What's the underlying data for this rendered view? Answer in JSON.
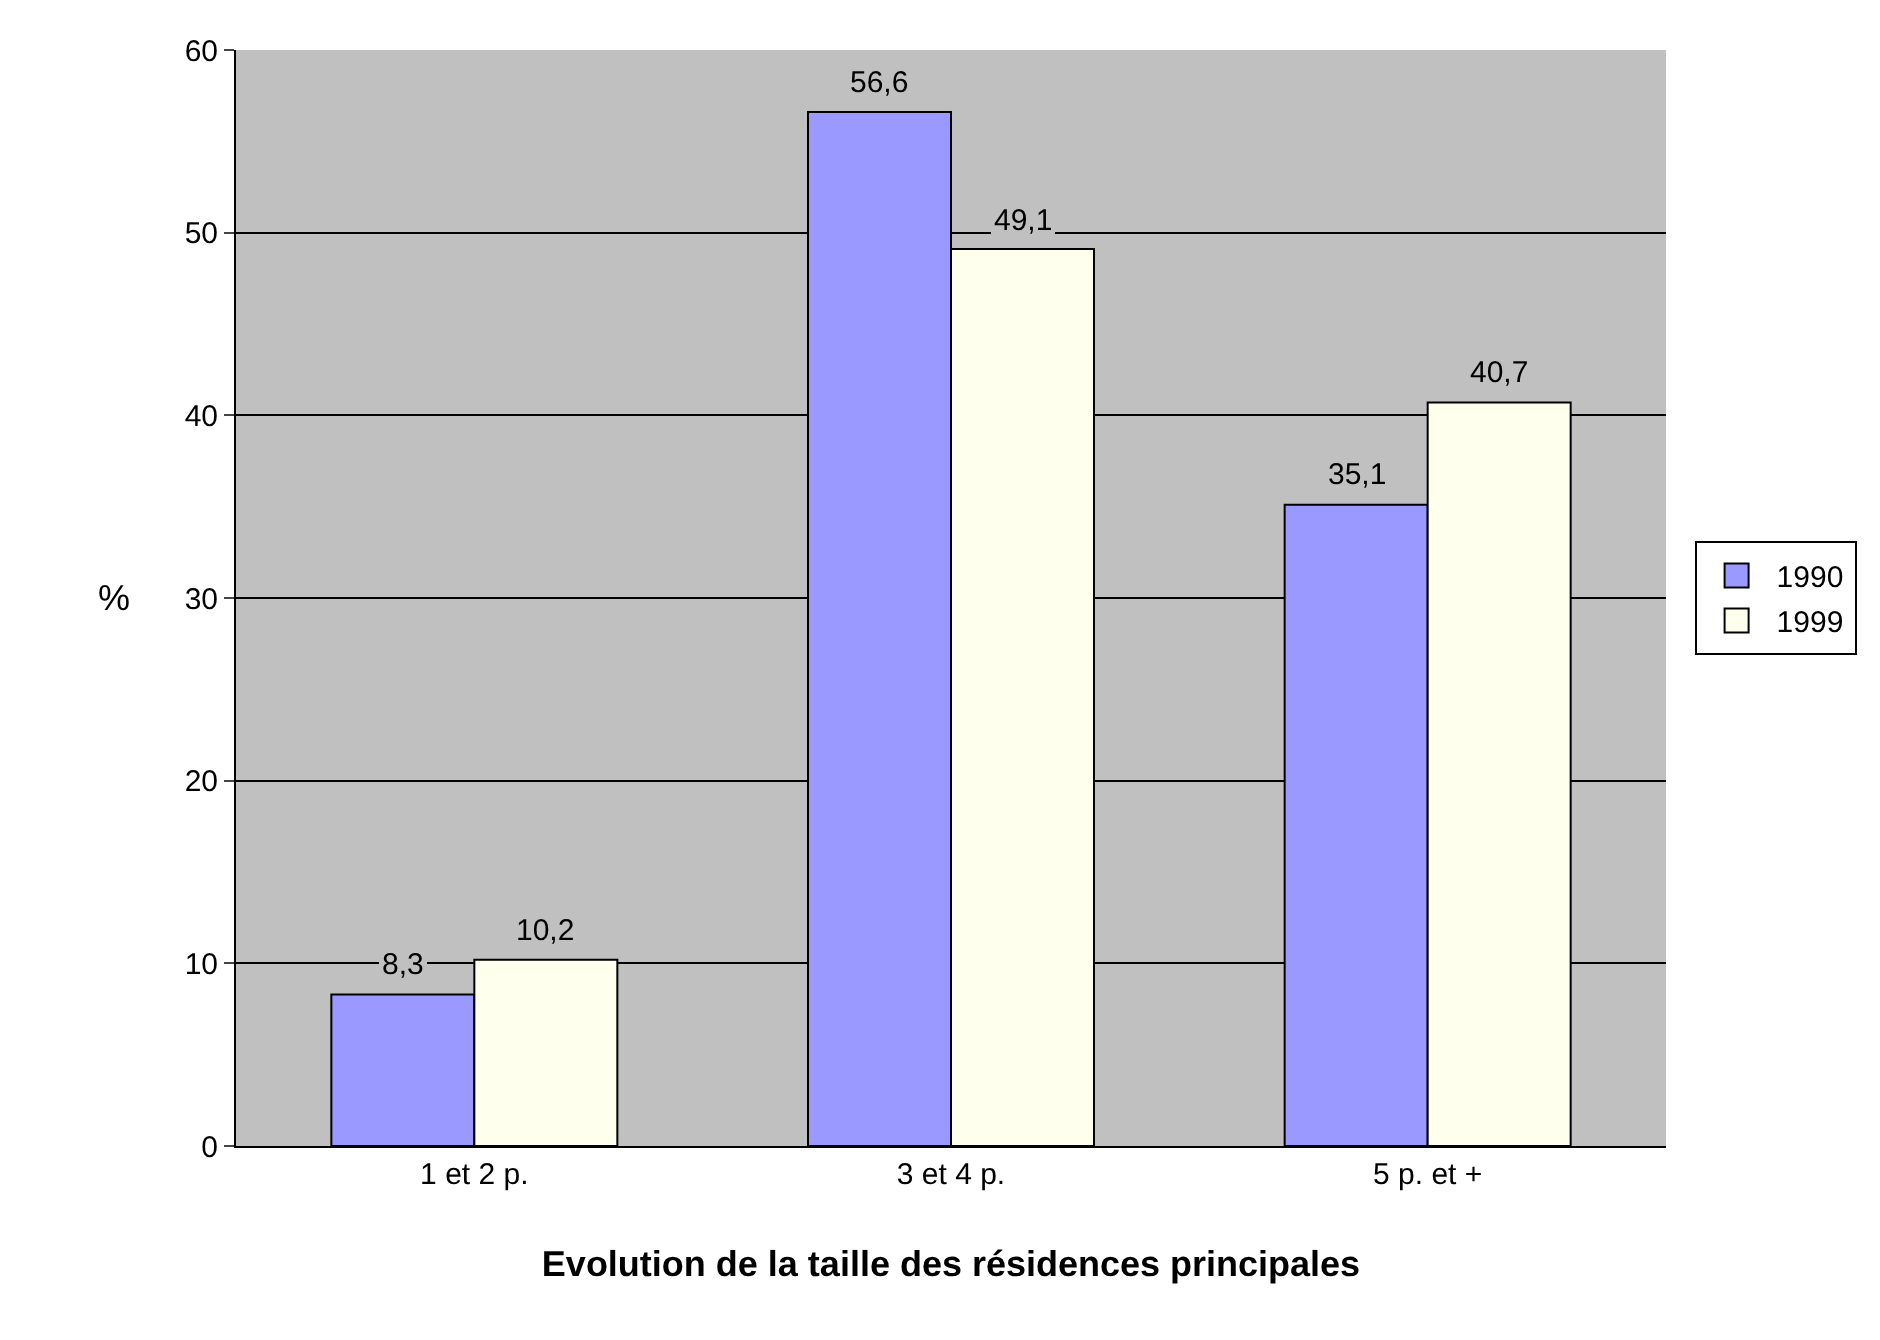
{
  "chart_data": {
    "type": "bar",
    "xlabel": "Evolution de la taille des résidences principales",
    "ylabel": "%",
    "categories": [
      "1 et 2 p.",
      "3 et 4 p.",
      "5 p. et +"
    ],
    "series": [
      {
        "name": "1990",
        "color": "#9999ff",
        "values": [
          8.3,
          56.6,
          35.1
        ],
        "value_labels": [
          "8,3",
          "56,6",
          "35,1"
        ]
      },
      {
        "name": "1999",
        "color": "#ffffee",
        "values": [
          10.2,
          49.1,
          40.7
        ],
        "value_labels": [
          "10,2",
          "49,1",
          "40,7"
        ]
      }
    ],
    "ylim": [
      0,
      60
    ],
    "yticks": [
      0,
      10,
      20,
      30,
      40,
      50,
      60
    ],
    "grid": "y",
    "legend": "right"
  }
}
